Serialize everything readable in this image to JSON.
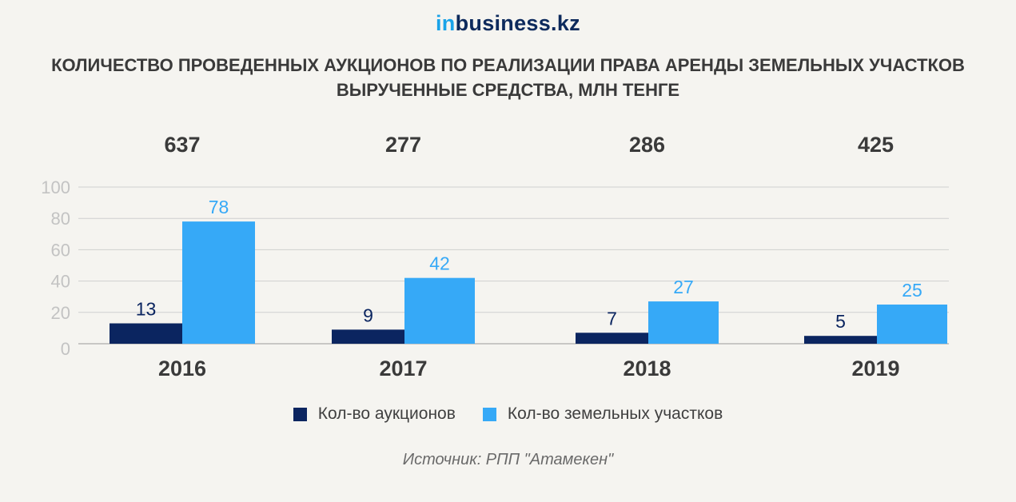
{
  "brand": {
    "logo_in": "in",
    "logo_rest": "business.kz"
  },
  "title_line1": "Количество проведенных аукционов по реализации права аренды земельных участков",
  "title_line2": "Вырученные средства, млн тенге",
  "source": "Источник: РПП \"Атамекен\"",
  "chart_data": {
    "type": "bar",
    "categories": [
      "2016",
      "2017",
      "2018",
      "2019"
    ],
    "top_values": [
      "637",
      "277",
      "286",
      "425"
    ],
    "series": [
      {
        "name": "Кол-во аукционов",
        "values": [
          13,
          9,
          7,
          5
        ],
        "color": "#0b2560"
      },
      {
        "name": "Кол-во земельных участков",
        "values": [
          78,
          42,
          27,
          25
        ],
        "color": "#36a9f7"
      }
    ],
    "ylim": [
      0,
      100
    ],
    "yticks": [
      "0",
      "20",
      "40",
      "60",
      "80",
      "100"
    ],
    "grid": true,
    "legend_position": "bottom"
  }
}
